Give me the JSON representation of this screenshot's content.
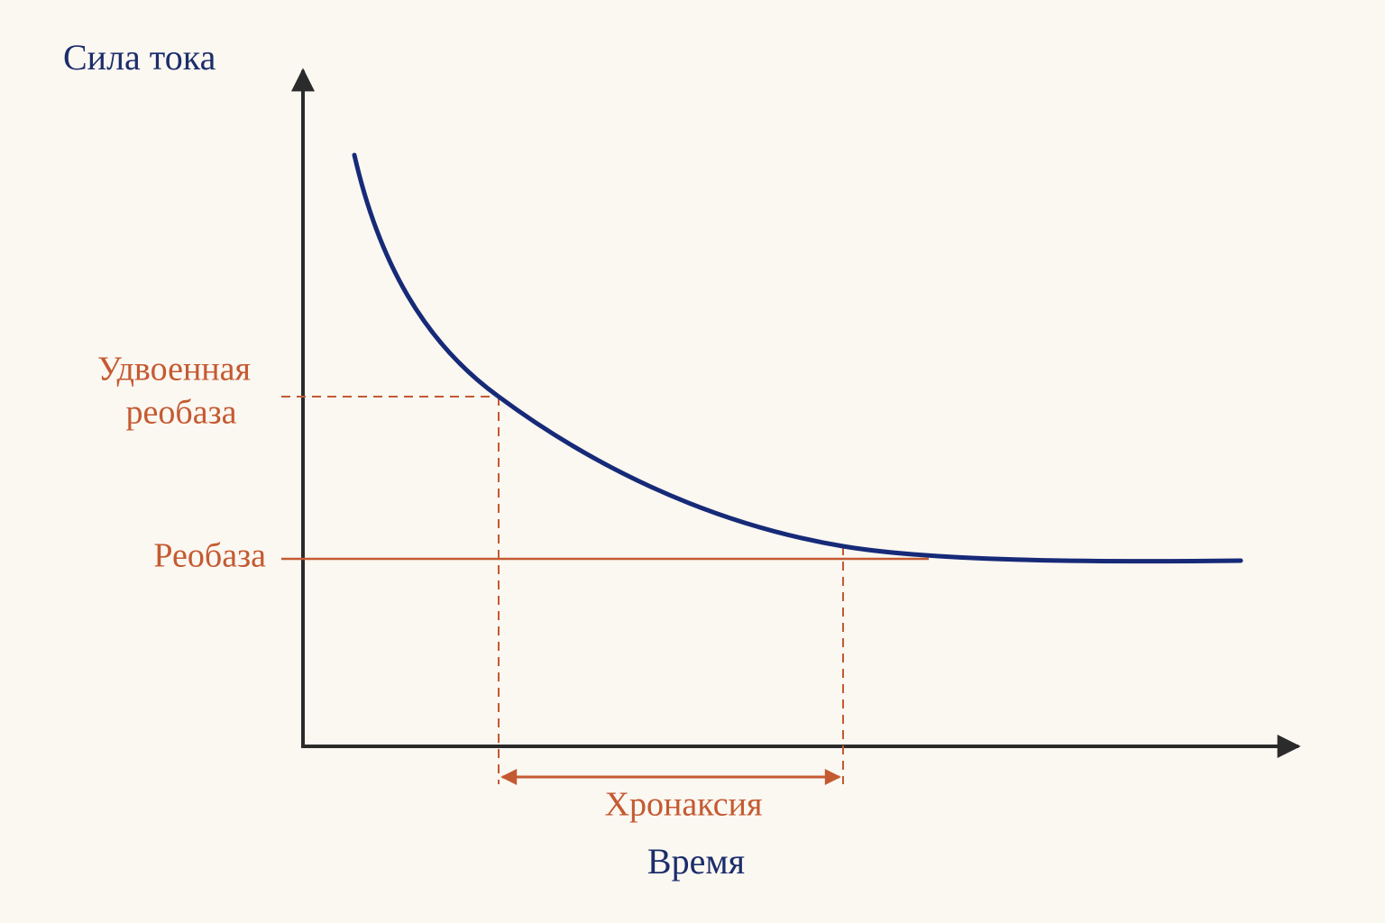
{
  "axes": {
    "y_label": "Сила тока",
    "x_label": "Время"
  },
  "labels": {
    "double_rheobase": [
      "Удвоенная",
      "реобаза"
    ],
    "rheobase": "Реобаза",
    "chronaxie": "Хронаксия"
  }
}
